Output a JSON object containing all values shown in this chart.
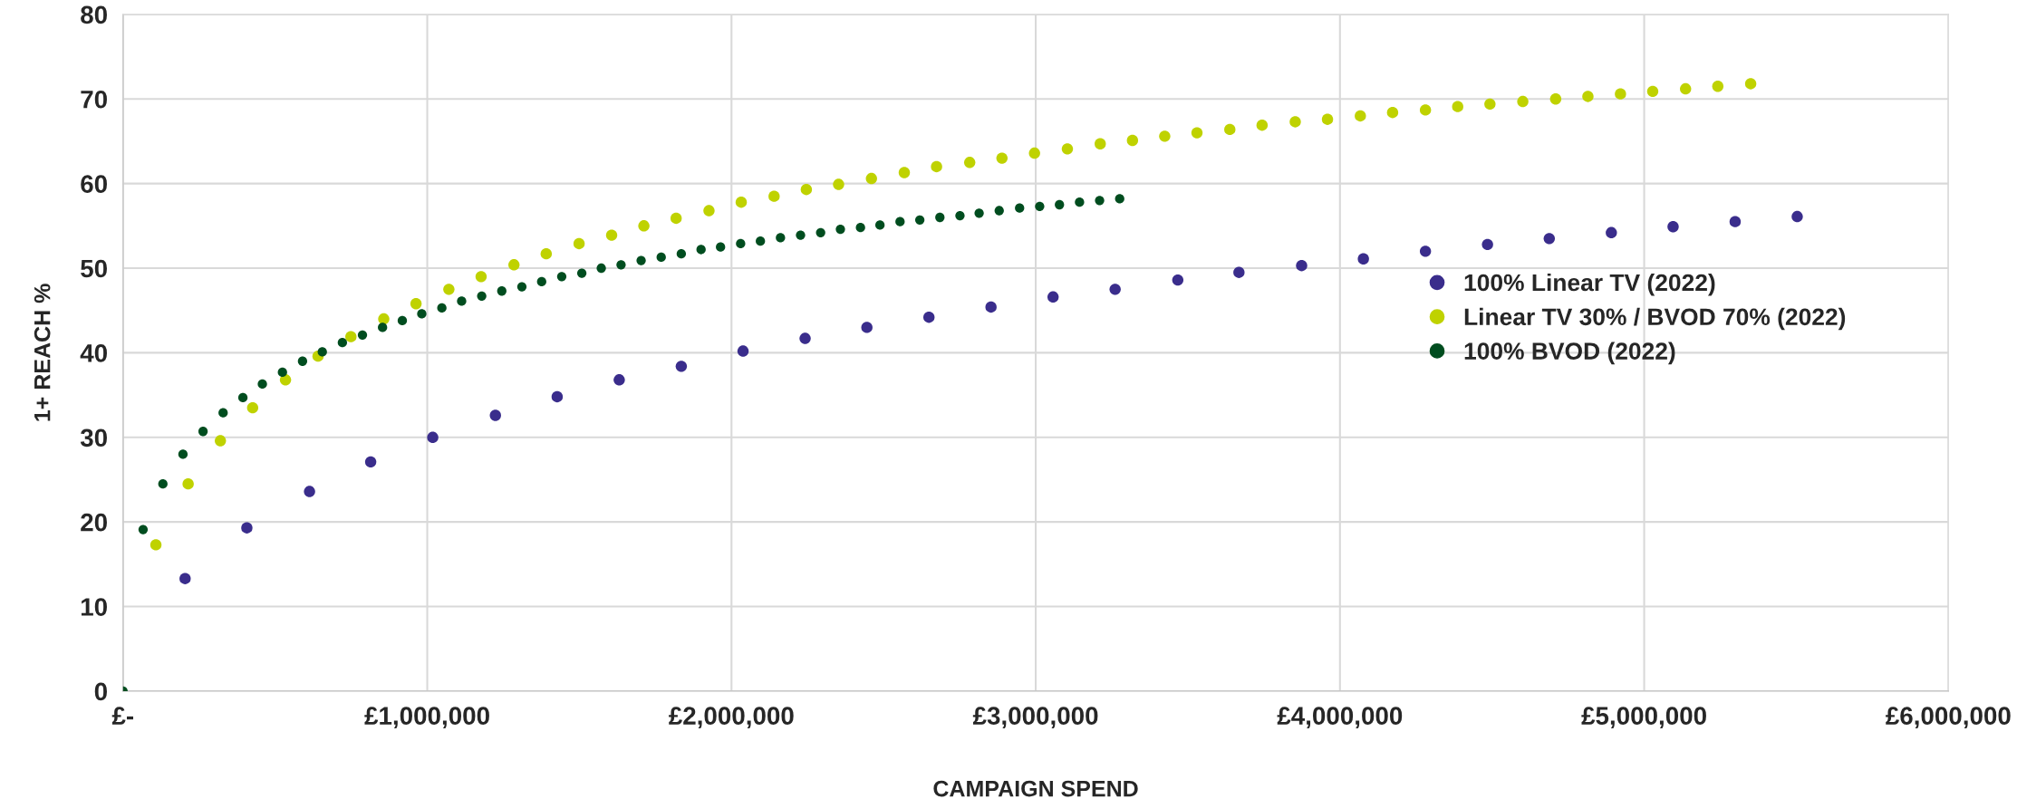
{
  "chart_data": {
    "type": "scatter",
    "xlabel": "CAMPAIGN SPEND",
    "ylabel": "1+ REACH %",
    "xlim": [
      0,
      6000000
    ],
    "xticks": [
      {
        "value": 0,
        "label": "£-"
      },
      {
        "value": 1000000,
        "label": "£1,000,000"
      },
      {
        "value": 2000000,
        "label": "£2,000,000"
      },
      {
        "value": 3000000,
        "label": "£3,000,000"
      },
      {
        "value": 4000000,
        "label": "£4,000,000"
      },
      {
        "value": 5000000,
        "label": "£5,000,000"
      },
      {
        "value": 6000000,
        "label": "£6,000,000"
      }
    ],
    "ylim": [
      0,
      80
    ],
    "yticks": [
      0,
      10,
      20,
      30,
      40,
      50,
      60,
      70,
      80
    ],
    "grid": true,
    "legend": "right",
    "marker": "circle",
    "series": [
      {
        "name": "100% Linear TV (2022)",
        "color": "#3a2d8c",
        "x": [
          204000,
          407000,
          613000,
          814000,
          1018000,
          1224000,
          1427000,
          1631000,
          1835000,
          2038000,
          2242000,
          2445000,
          2649000,
          2853000,
          3057000,
          3261000,
          3467000,
          3668000,
          3874000,
          4077000,
          4281000,
          4485000,
          4688000,
          4892000,
          5095000,
          5299000,
          5503000
        ],
        "values": [
          13.3,
          19.3,
          23.6,
          27.1,
          30.0,
          32.6,
          34.8,
          36.8,
          38.4,
          40.2,
          41.7,
          43.0,
          44.2,
          45.4,
          46.6,
          47.5,
          48.6,
          49.5,
          50.3,
          51.1,
          52.0,
          52.8,
          53.5,
          54.2,
          54.9,
          55.5,
          56.1
        ]
      },
      {
        "name": "Linear TV 30% / BVOD 70% (2022)",
        "color": "#bfd200",
        "x": [
          108000,
          214000,
          320000,
          426000,
          534000,
          641000,
          749000,
          857000,
          963000,
          1071000,
          1177000,
          1285000,
          1391000,
          1499000,
          1606000,
          1712000,
          1818000,
          1926000,
          2032000,
          2140000,
          2246000,
          2352000,
          2460000,
          2568000,
          2674000,
          2783000,
          2889000,
          2996000,
          3104000,
          3212000,
          3318000,
          3424000,
          3530000,
          3638000,
          3744000,
          3853000,
          3959000,
          4067000,
          4173000,
          4281000,
          4387000,
          4493000,
          4601000,
          4709000,
          4815000,
          4922000,
          5028000,
          5136000,
          5242000,
          5350000
        ],
        "values": [
          17.3,
          24.5,
          29.6,
          33.5,
          36.8,
          39.6,
          41.9,
          44.0,
          45.8,
          47.5,
          49.0,
          50.4,
          51.7,
          52.9,
          53.9,
          55.0,
          55.9,
          56.8,
          57.8,
          58.5,
          59.3,
          59.9,
          60.6,
          61.3,
          62.0,
          62.5,
          63.0,
          63.6,
          64.1,
          64.7,
          65.1,
          65.6,
          66.0,
          66.4,
          66.9,
          67.3,
          67.6,
          68.0,
          68.4,
          68.7,
          69.1,
          69.4,
          69.7,
          70.0,
          70.3,
          70.6,
          70.9,
          71.2,
          71.5,
          71.8
        ]
      },
      {
        "name": "100% BVOD (2022)",
        "color": "#004d1f",
        "x": [
          0,
          66000,
          131000,
          197000,
          263000,
          329000,
          394000,
          458000,
          524000,
          590000,
          655000,
          721000,
          787000,
          853000,
          918000,
          982000,
          1048000,
          1113000,
          1179000,
          1245000,
          1311000,
          1376000,
          1442000,
          1508000,
          1572000,
          1637000,
          1703000,
          1769000,
          1835000,
          1900000,
          1964000,
          2030000,
          2095000,
          2161000,
          2227000,
          2293000,
          2358000,
          2424000,
          2488000,
          2554000,
          2619000,
          2685000,
          2751000,
          2814000,
          2880000,
          2947000,
          3013000,
          3078000,
          3144000,
          3210000,
          3276000
        ],
        "values": [
          0,
          19.1,
          24.5,
          28.0,
          30.7,
          32.9,
          34.7,
          36.3,
          37.7,
          39.0,
          40.1,
          41.2,
          42.1,
          43.0,
          43.8,
          44.6,
          45.3,
          46.1,
          46.7,
          47.3,
          47.8,
          48.4,
          49.0,
          49.4,
          50.0,
          50.4,
          50.9,
          51.3,
          51.7,
          52.2,
          52.5,
          52.9,
          53.2,
          53.6,
          53.9,
          54.2,
          54.6,
          54.8,
          55.1,
          55.5,
          55.7,
          56.0,
          56.2,
          56.5,
          56.8,
          57.1,
          57.3,
          57.5,
          57.8,
          58.0,
          58.2
        ]
      }
    ]
  }
}
